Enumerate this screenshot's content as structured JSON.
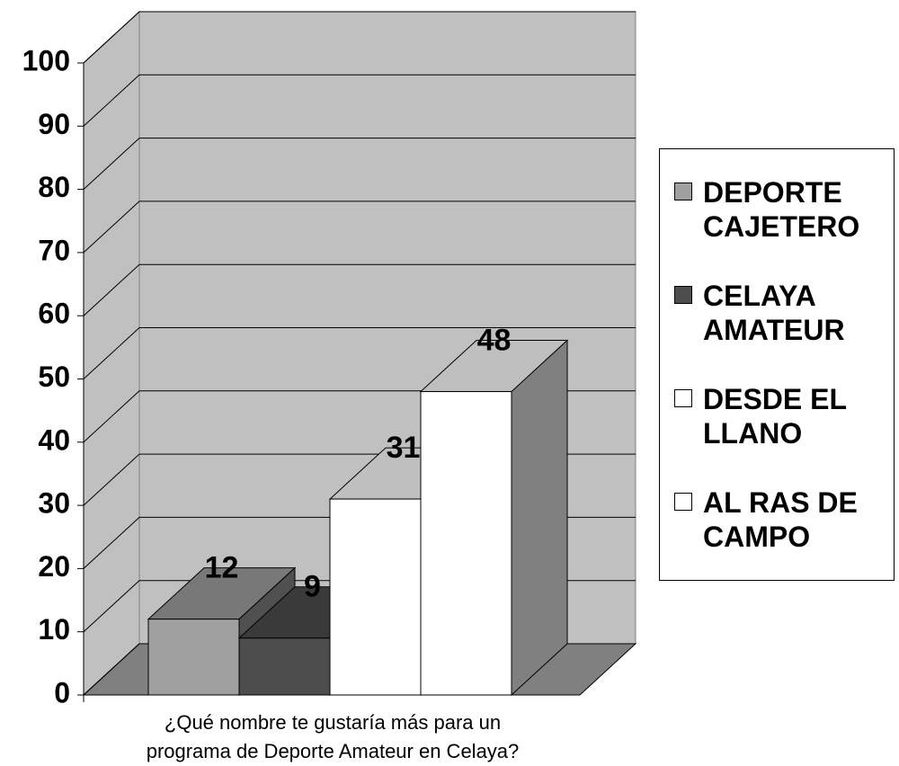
{
  "chart_data": {
    "type": "bar3d",
    "categories": [
      "¿Qué nombre te gustaría más para un programa de Deporte Amateur en Celaya?"
    ],
    "series": [
      {
        "name": "DEPORTE CAJETERO",
        "color": "#a0a0a0",
        "values": [
          12
        ]
      },
      {
        "name": "CELAYA AMATEUR",
        "color": "#4d4d4d",
        "values": [
          9
        ]
      },
      {
        "name": "DESDE EL LLANO",
        "color": "#ffffff",
        "values": [
          31
        ]
      },
      {
        "name": "AL RAS DE CAMPO",
        "color": "#ffffff",
        "values": [
          48
        ]
      }
    ],
    "ylim": [
      0,
      100
    ],
    "yticks": [
      0,
      10,
      20,
      30,
      40,
      50,
      60,
      70,
      80,
      90,
      100
    ],
    "grid": true,
    "legend": "right"
  }
}
